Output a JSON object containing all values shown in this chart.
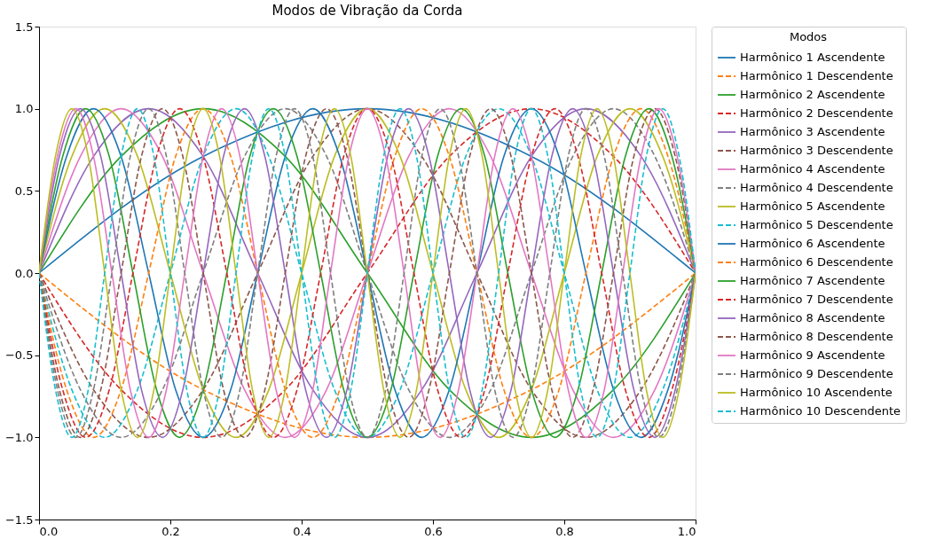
{
  "chart_data": {
    "type": "line",
    "title": "Modos de Vibração da Corda",
    "legend_title": "Modos",
    "legend": "right",
    "grid": false,
    "xlim": [
      0,
      1
    ],
    "xticks": [
      {
        "value": 0,
        "label": "0.0"
      },
      {
        "value": 0.2,
        "label": "0.2"
      },
      {
        "value": 0.4,
        "label": "0.4"
      },
      {
        "value": 0.6,
        "label": "0.6"
      },
      {
        "value": 0.8,
        "label": "0.8"
      },
      {
        "value": 1,
        "label": "1.0"
      }
    ],
    "ylim": [
      -1.5,
      1.5
    ],
    "yticks": [
      {
        "value": -1.5,
        "label": "−1.5"
      },
      {
        "value": -1,
        "label": "−1.0"
      },
      {
        "value": -0.5,
        "label": "−0.5"
      },
      {
        "value": 0,
        "label": "0.0"
      },
      {
        "value": 0.5,
        "label": "0.5"
      },
      {
        "value": 1,
        "label": "1.0"
      },
      {
        "value": 1.5,
        "label": "1.5"
      }
    ],
    "series": [
      {
        "name": "Harmônico 1 Ascendente",
        "color": "#1f77b4",
        "line_style": "solid",
        "x": [
          0,
          0.25,
          0.5,
          0.75,
          1
        ],
        "values": [
          0,
          0.71,
          1,
          0.71,
          0
        ]
      },
      {
        "name": "Harmônico 1 Descendente",
        "color": "#ff7f0e",
        "line_style": "dashed",
        "x": [
          0,
          0.25,
          0.5,
          0.75,
          1
        ],
        "values": [
          0,
          -0.71,
          -1,
          -0.71,
          0
        ]
      },
      {
        "name": "Harmônico 2 Ascendente",
        "color": "#2ca02c",
        "line_style": "solid",
        "x": [
          0,
          0.125,
          0.25,
          0.375,
          0.5,
          0.625,
          0.75,
          0.875,
          1
        ],
        "values": [
          0,
          0.71,
          1,
          0.71,
          0,
          -0.71,
          -1,
          -0.71,
          0
        ]
      },
      {
        "name": "Harmônico 2 Descendente",
        "color": "#d62728",
        "line_style": "dashed",
        "x": [
          0,
          0.125,
          0.25,
          0.375,
          0.5,
          0.625,
          0.75,
          0.875,
          1
        ],
        "values": [
          0,
          -0.71,
          -1,
          -0.71,
          0,
          0.71,
          1,
          0.71,
          0
        ]
      },
      {
        "name": "Harmônico 3 Ascendente",
        "color": "#9467bd",
        "line_style": "solid",
        "x": [
          0,
          0.083,
          0.167,
          0.25,
          0.333,
          0.417,
          0.5,
          0.583,
          0.667,
          0.75,
          0.833,
          0.917,
          1
        ],
        "values": [
          0,
          0.71,
          1,
          0.71,
          0,
          -0.71,
          -1,
          -0.71,
          0,
          0.71,
          1,
          0.71,
          0
        ]
      },
      {
        "name": "Harmônico 3 Descendente",
        "color": "#8c564b",
        "line_style": "dashed",
        "x": [
          0,
          0.083,
          0.167,
          0.25,
          0.333,
          0.417,
          0.5,
          0.583,
          0.667,
          0.75,
          0.833,
          0.917,
          1
        ],
        "values": [
          0,
          -0.71,
          -1,
          -0.71,
          0,
          0.71,
          1,
          0.71,
          0,
          -0.71,
          -1,
          -0.71,
          0
        ]
      },
      {
        "name": "Harmônico 4 Ascendente",
        "color": "#e377c2",
        "line_style": "solid",
        "x": [
          0,
          0.063,
          0.125,
          0.188,
          0.25,
          0.313,
          0.375,
          0.438,
          0.5,
          0.563,
          0.625,
          0.688,
          0.75,
          0.813,
          0.875,
          0.938,
          1
        ],
        "values": [
          0,
          0.71,
          1,
          0.71,
          0,
          -0.71,
          -1,
          -0.71,
          0,
          0.71,
          1,
          0.71,
          0,
          -0.71,
          -1,
          -0.71,
          0
        ]
      },
      {
        "name": "Harmônico 4 Descendente",
        "color": "#7f7f7f",
        "line_style": "dashed",
        "x": [
          0,
          0.063,
          0.125,
          0.188,
          0.25,
          0.313,
          0.375,
          0.438,
          0.5,
          0.563,
          0.625,
          0.688,
          0.75,
          0.813,
          0.875,
          0.938,
          1
        ],
        "values": [
          0,
          -0.71,
          -1,
          -0.71,
          0,
          0.71,
          1,
          0.71,
          0,
          -0.71,
          -1,
          -0.71,
          0,
          0.71,
          1,
          0.71,
          0
        ]
      },
      {
        "name": "Harmônico 5 Ascendente",
        "color": "#bcbd22",
        "line_style": "solid",
        "x": [
          0,
          0.05,
          0.1,
          0.15,
          0.2,
          0.25,
          0.3,
          0.35,
          0.4,
          0.45,
          0.5,
          0.55,
          0.6,
          0.65,
          0.7,
          0.75,
          0.8,
          0.85,
          0.9,
          0.95,
          1
        ],
        "values": [
          0,
          0.71,
          1,
          0.71,
          0,
          -0.71,
          -1,
          -0.71,
          0,
          0.71,
          1,
          0.71,
          0,
          -0.71,
          -1,
          -0.71,
          0,
          0.71,
          1,
          0.71,
          0
        ]
      },
      {
        "name": "Harmônico 5 Descendente",
        "color": "#17becf",
        "line_style": "dashed",
        "x": [
          0,
          0.05,
          0.1,
          0.15,
          0.2,
          0.25,
          0.3,
          0.35,
          0.4,
          0.45,
          0.5,
          0.55,
          0.6,
          0.65,
          0.7,
          0.75,
          0.8,
          0.85,
          0.9,
          0.95,
          1
        ],
        "values": [
          0,
          -0.71,
          -1,
          -0.71,
          0,
          0.71,
          1,
          0.71,
          0,
          -0.71,
          -1,
          -0.71,
          0,
          0.71,
          1,
          0.71,
          0,
          -0.71,
          -1,
          -0.71,
          0
        ]
      },
      {
        "name": "Harmônico 6 Ascendente",
        "color": "#1f77b4",
        "line_style": "solid",
        "x": [
          0,
          0.042,
          0.083,
          0.125,
          0.167,
          0.208,
          0.25,
          0.292,
          0.333,
          0.375,
          0.417,
          0.458,
          0.5,
          0.542,
          0.583,
          0.625,
          0.667,
          0.708,
          0.75,
          0.792,
          0.833,
          0.875,
          0.917,
          0.958,
          1
        ],
        "values": [
          0,
          0.71,
          1,
          0.71,
          0,
          -0.71,
          -1,
          -0.71,
          0,
          0.71,
          1,
          0.71,
          0,
          -0.71,
          -1,
          -0.71,
          0,
          0.71,
          1,
          0.71,
          0,
          -0.71,
          -1,
          -0.71,
          0
        ]
      },
      {
        "name": "Harmônico 6 Descendente",
        "color": "#ff7f0e",
        "line_style": "dashed",
        "x": [
          0,
          0.042,
          0.083,
          0.125,
          0.167,
          0.208,
          0.25,
          0.292,
          0.333,
          0.375,
          0.417,
          0.458,
          0.5,
          0.542,
          0.583,
          0.625,
          0.667,
          0.708,
          0.75,
          0.792,
          0.833,
          0.875,
          0.917,
          0.958,
          1
        ],
        "values": [
          0,
          -0.71,
          -1,
          -0.71,
          0,
          0.71,
          1,
          0.71,
          0,
          -0.71,
          -1,
          -0.71,
          0,
          0.71,
          1,
          0.71,
          0,
          -0.71,
          -1,
          -0.71,
          0,
          0.71,
          1,
          0.71,
          0
        ]
      },
      {
        "name": "Harmônico 7 Ascendente",
        "color": "#2ca02c",
        "line_style": "solid",
        "x": [
          0,
          0.036,
          0.071,
          0.107,
          0.143,
          0.179,
          0.214,
          0.25,
          0.286,
          0.321,
          0.357,
          0.393,
          0.429,
          0.464,
          0.5,
          0.536,
          0.571,
          0.607,
          0.643,
          0.679,
          0.714,
          0.75,
          0.786,
          0.821,
          0.857,
          0.893,
          0.929,
          0.964,
          1
        ],
        "values": [
          0,
          0.71,
          1,
          0.71,
          0,
          -0.71,
          -1,
          -0.71,
          0,
          0.71,
          1,
          0.71,
          0,
          -0.71,
          -1,
          -0.71,
          0,
          0.71,
          1,
          0.71,
          0,
          -0.71,
          -1,
          -0.71,
          0,
          0.71,
          1,
          0.71,
          0
        ]
      },
      {
        "name": "Harmônico 7 Descendente",
        "color": "#d62728",
        "line_style": "dashed",
        "x": [
          0,
          0.036,
          0.071,
          0.107,
          0.143,
          0.179,
          0.214,
          0.25,
          0.286,
          0.321,
          0.357,
          0.393,
          0.429,
          0.464,
          0.5,
          0.536,
          0.571,
          0.607,
          0.643,
          0.679,
          0.714,
          0.75,
          0.786,
          0.821,
          0.857,
          0.893,
          0.929,
          0.964,
          1
        ],
        "values": [
          0,
          -0.71,
          -1,
          -0.71,
          0,
          0.71,
          1,
          0.71,
          0,
          -0.71,
          -1,
          -0.71,
          0,
          0.71,
          1,
          0.71,
          0,
          -0.71,
          -1,
          -0.71,
          0,
          0.71,
          1,
          0.71,
          0,
          -0.71,
          -1,
          -0.71,
          0
        ]
      },
      {
        "name": "Harmônico 8 Ascendente",
        "color": "#9467bd",
        "line_style": "solid",
        "x": [
          0,
          0.031,
          0.063,
          0.094,
          0.125,
          0.156,
          0.188,
          0.219,
          0.25,
          0.281,
          0.313,
          0.344,
          0.375,
          0.406,
          0.438,
          0.469,
          0.5,
          0.531,
          0.563,
          0.594,
          0.625,
          0.656,
          0.688,
          0.719,
          0.75,
          0.781,
          0.813,
          0.844,
          0.875,
          0.906,
          0.938,
          0.969,
          1
        ],
        "values": [
          0,
          0.71,
          1,
          0.71,
          0,
          -0.71,
          -1,
          -0.71,
          0,
          0.71,
          1,
          0.71,
          0,
          -0.71,
          -1,
          -0.71,
          0,
          0.71,
          1,
          0.71,
          0,
          -0.71,
          -1,
          -0.71,
          0,
          0.71,
          1,
          0.71,
          0,
          -0.71,
          -1,
          -0.71,
          0
        ]
      },
      {
        "name": "Harmônico 8 Descendente",
        "color": "#8c564b",
        "line_style": "dashed",
        "x": [
          0,
          0.031,
          0.063,
          0.094,
          0.125,
          0.156,
          0.188,
          0.219,
          0.25,
          0.281,
          0.313,
          0.344,
          0.375,
          0.406,
          0.438,
          0.469,
          0.5,
          0.531,
          0.563,
          0.594,
          0.625,
          0.656,
          0.688,
          0.719,
          0.75,
          0.781,
          0.813,
          0.844,
          0.875,
          0.906,
          0.938,
          0.969,
          1
        ],
        "values": [
          0,
          -0.71,
          -1,
          -0.71,
          0,
          0.71,
          1,
          0.71,
          0,
          -0.71,
          -1,
          -0.71,
          0,
          0.71,
          1,
          0.71,
          0,
          -0.71,
          -1,
          -0.71,
          0,
          0.71,
          1,
          0.71,
          0,
          -0.71,
          -1,
          -0.71,
          0,
          0.71,
          1,
          0.71,
          0
        ]
      },
      {
        "name": "Harmônico 9 Ascendente",
        "color": "#e377c2",
        "line_style": "solid",
        "x": [
          0,
          0.028,
          0.056,
          0.083,
          0.111,
          0.139,
          0.167,
          0.194,
          0.222,
          0.25,
          0.278,
          0.306,
          0.333,
          0.361,
          0.389,
          0.417,
          0.444,
          0.472,
          0.5,
          0.528,
          0.556,
          0.583,
          0.611,
          0.639,
          0.667,
          0.694,
          0.722,
          0.75,
          0.778,
          0.806,
          0.833,
          0.861,
          0.889,
          0.917,
          0.944,
          0.972,
          1
        ],
        "values": [
          0,
          0.71,
          1,
          0.71,
          0,
          -0.71,
          -1,
          -0.71,
          0,
          0.71,
          1,
          0.71,
          0,
          -0.71,
          -1,
          -0.71,
          0,
          0.71,
          1,
          0.71,
          0,
          -0.71,
          -1,
          -0.71,
          0,
          0.71,
          1,
          0.71,
          0,
          -0.71,
          -1,
          -0.71,
          0,
          0.71,
          1,
          0.71,
          0
        ]
      },
      {
        "name": "Harmônico 9 Descendente",
        "color": "#7f7f7f",
        "line_style": "dashed",
        "x": [
          0,
          0.028,
          0.056,
          0.083,
          0.111,
          0.139,
          0.167,
          0.194,
          0.222,
          0.25,
          0.278,
          0.306,
          0.333,
          0.361,
          0.389,
          0.417,
          0.444,
          0.472,
          0.5,
          0.528,
          0.556,
          0.583,
          0.611,
          0.639,
          0.667,
          0.694,
          0.722,
          0.75,
          0.778,
          0.806,
          0.833,
          0.861,
          0.889,
          0.917,
          0.944,
          0.972,
          1
        ],
        "values": [
          0,
          -0.71,
          -1,
          -0.71,
          0,
          0.71,
          1,
          0.71,
          0,
          -0.71,
          -1,
          -0.71,
          0,
          0.71,
          1,
          0.71,
          0,
          -0.71,
          -1,
          -0.71,
          0,
          0.71,
          1,
          0.71,
          0,
          -0.71,
          -1,
          -0.71,
          0,
          0.71,
          1,
          0.71,
          0,
          -0.71,
          -1,
          -0.71,
          0
        ]
      },
      {
        "name": "Harmônico 10 Ascendente",
        "color": "#bcbd22",
        "line_style": "solid",
        "x": [
          0,
          0.025,
          0.05,
          0.075,
          0.1,
          0.125,
          0.15,
          0.175,
          0.2,
          0.225,
          0.25,
          0.275,
          0.3,
          0.325,
          0.35,
          0.375,
          0.4,
          0.425,
          0.45,
          0.475,
          0.5,
          0.525,
          0.55,
          0.575,
          0.6,
          0.625,
          0.65,
          0.675,
          0.7,
          0.725,
          0.75,
          0.775,
          0.8,
          0.825,
          0.85,
          0.875,
          0.9,
          0.925,
          0.95,
          0.975,
          1
        ],
        "values": [
          0,
          0.71,
          1,
          0.71,
          0,
          -0.71,
          -1,
          -0.71,
          0,
          0.71,
          1,
          0.71,
          0,
          -0.71,
          -1,
          -0.71,
          0,
          0.71,
          1,
          0.71,
          0,
          -0.71,
          -1,
          -0.71,
          0,
          0.71,
          1,
          0.71,
          0,
          -0.71,
          -1,
          -0.71,
          0,
          0.71,
          1,
          0.71,
          0,
          -0.71,
          -1,
          -0.71,
          0
        ]
      },
      {
        "name": "Harmônico 10 Descendente",
        "color": "#17becf",
        "line_style": "dashed",
        "x": [
          0,
          0.025,
          0.05,
          0.075,
          0.1,
          0.125,
          0.15,
          0.175,
          0.2,
          0.225,
          0.25,
          0.275,
          0.3,
          0.325,
          0.35,
          0.375,
          0.4,
          0.425,
          0.45,
          0.475,
          0.5,
          0.525,
          0.55,
          0.575,
          0.6,
          0.625,
          0.65,
          0.675,
          0.7,
          0.725,
          0.75,
          0.775,
          0.8,
          0.825,
          0.85,
          0.875,
          0.9,
          0.925,
          0.95,
          0.975,
          1
        ],
        "values": [
          0,
          -0.71,
          -1,
          -0.71,
          0,
          0.71,
          1,
          0.71,
          0,
          -0.71,
          -1,
          -0.71,
          0,
          0.71,
          1,
          0.71,
          0,
          -0.71,
          -1,
          -0.71,
          0,
          0.71,
          1,
          0.71,
          0,
          -0.71,
          -1,
          -0.71,
          0,
          0.71,
          1,
          0.71,
          0,
          -0.71,
          -1,
          -0.71,
          0,
          0.71,
          1,
          0.71,
          0
        ]
      }
    ]
  }
}
